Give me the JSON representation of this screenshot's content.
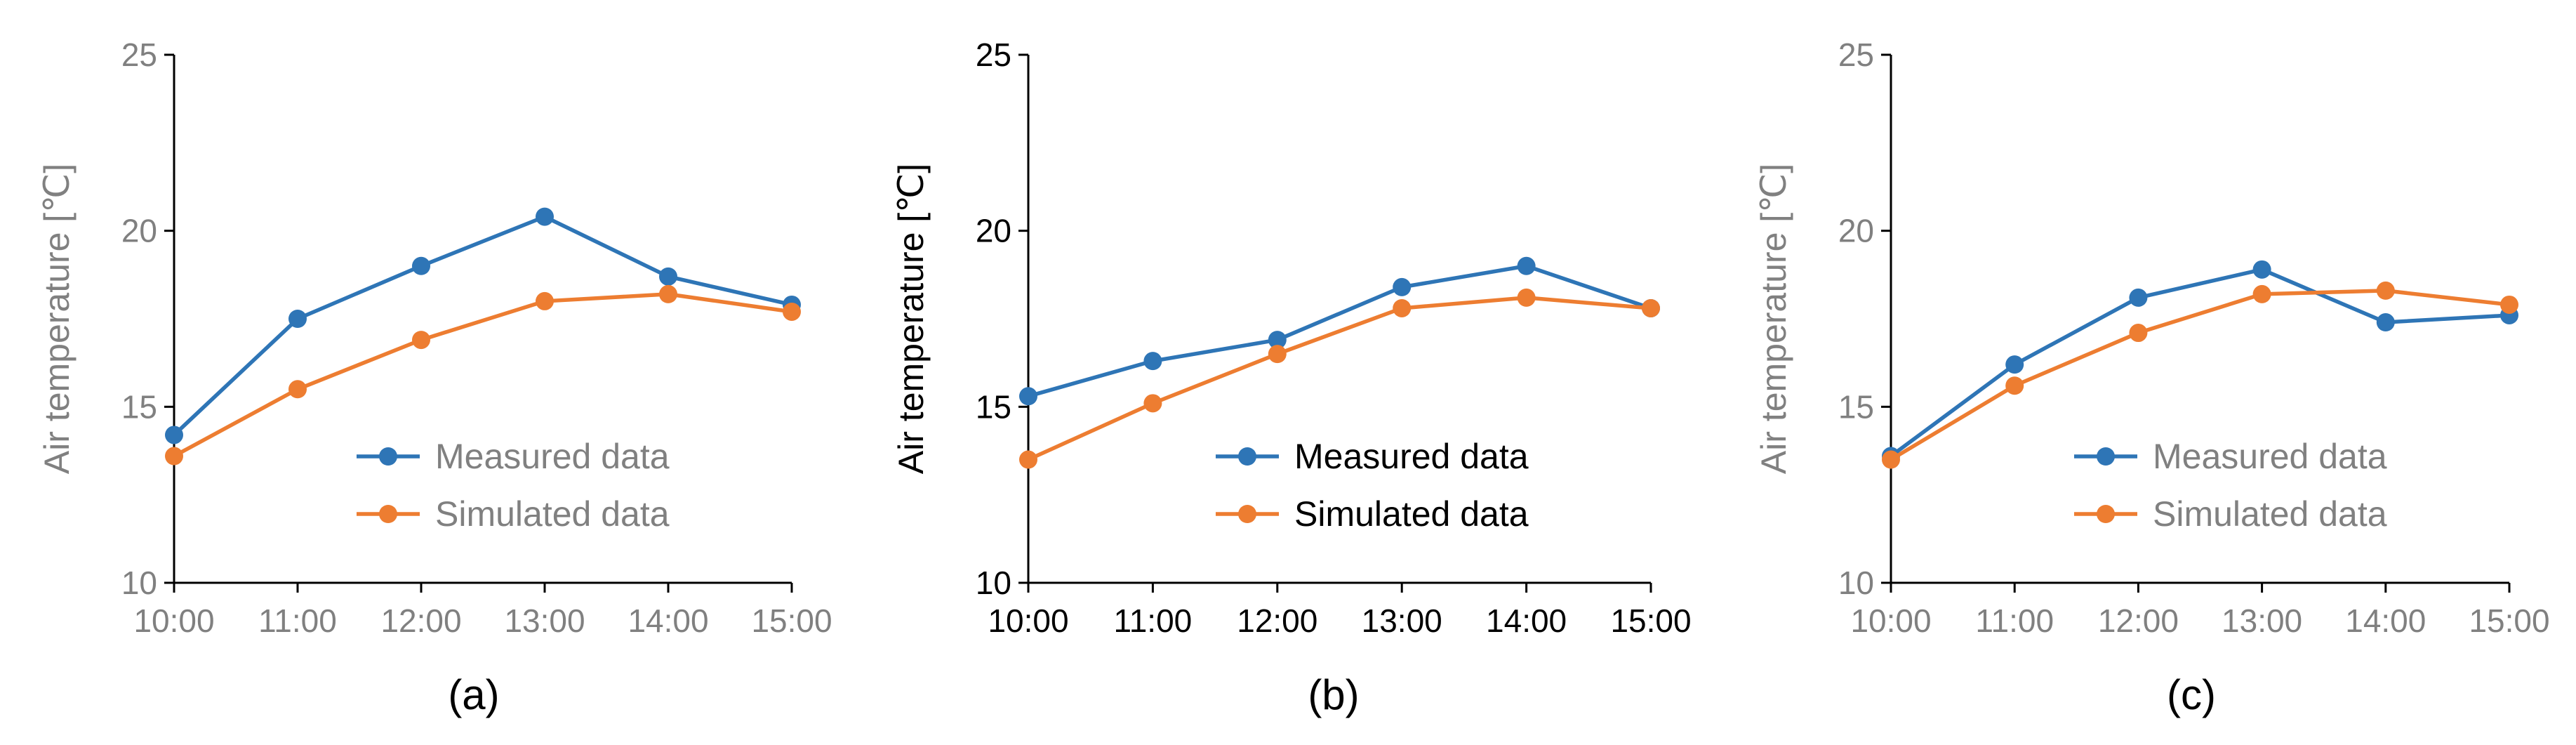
{
  "colors": {
    "measured": "#2E75B6",
    "simulated": "#ED7D31"
  },
  "chart_data": [
    {
      "type": "line",
      "panel_label": "(a)",
      "ylabel": "Air temperature [℃]",
      "ylim": [
        10,
        25
      ],
      "yticks": [
        "10",
        "15",
        "20",
        "25"
      ],
      "categories": [
        "10:00",
        "11:00",
        "12:00",
        "13:00",
        "14:00",
        "15:00"
      ],
      "legend_position": "bottom-right",
      "text_color": "#808080",
      "series": [
        {
          "name": "Measured data",
          "color_key": "measured",
          "values": [
            14.2,
            17.5,
            19.0,
            20.4,
            18.7,
            17.9
          ]
        },
        {
          "name": "Simulated data",
          "color_key": "simulated",
          "values": [
            13.6,
            15.5,
            16.9,
            18.0,
            18.2,
            17.7
          ]
        }
      ]
    },
    {
      "type": "line",
      "panel_label": "(b)",
      "ylabel": "Air temperature [℃]",
      "ylim": [
        10,
        25
      ],
      "yticks": [
        "10",
        "15",
        "20",
        "25"
      ],
      "categories": [
        "10:00",
        "11:00",
        "12:00",
        "13:00",
        "14:00",
        "15:00"
      ],
      "legend_position": "bottom-right",
      "text_color": "#000000",
      "series": [
        {
          "name": "Measured data",
          "color_key": "measured",
          "values": [
            15.3,
            16.3,
            16.9,
            18.4,
            19.0,
            17.8
          ]
        },
        {
          "name": "Simulated data",
          "color_key": "simulated",
          "values": [
            13.5,
            15.1,
            16.5,
            17.8,
            18.1,
            17.8
          ]
        }
      ]
    },
    {
      "type": "line",
      "panel_label": "(c)",
      "ylabel": "Air temperature [℃]",
      "ylim": [
        10,
        25
      ],
      "yticks": [
        "10",
        "15",
        "20",
        "25"
      ],
      "categories": [
        "10:00",
        "11:00",
        "12:00",
        "13:00",
        "14:00",
        "15:00"
      ],
      "legend_position": "bottom-right",
      "text_color": "#808080",
      "series": [
        {
          "name": "Measured data",
          "color_key": "measured",
          "values": [
            13.6,
            16.2,
            18.1,
            18.9,
            17.4,
            17.6
          ]
        },
        {
          "name": "Simulated data",
          "color_key": "simulated",
          "values": [
            13.5,
            15.6,
            17.1,
            18.2,
            18.3,
            17.9
          ]
        }
      ]
    }
  ]
}
